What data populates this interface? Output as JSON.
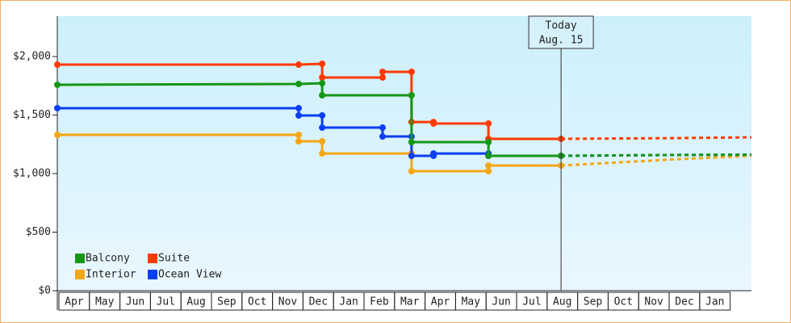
{
  "chart_data": {
    "type": "step-line",
    "xlim": [
      0,
      22.75
    ],
    "xticks": [
      {
        "value": 0.5,
        "label": "Apr"
      },
      {
        "value": 1.5,
        "label": "May"
      },
      {
        "value": 2.5,
        "label": "Jun"
      },
      {
        "value": 3.5,
        "label": "Jul"
      },
      {
        "value": 4.5,
        "label": "Aug"
      },
      {
        "value": 5.5,
        "label": "Sep"
      },
      {
        "value": 6.5,
        "label": "Oct"
      },
      {
        "value": 7.5,
        "label": "Nov"
      },
      {
        "value": 8.5,
        "label": "Dec"
      },
      {
        "value": 9.5,
        "label": "Jan"
      },
      {
        "value": 10.5,
        "label": "Feb"
      },
      {
        "value": 11.5,
        "label": "Mar"
      },
      {
        "value": 12.5,
        "label": "Apr"
      },
      {
        "value": 13.5,
        "label": "May"
      },
      {
        "value": 14.5,
        "label": "Jun"
      },
      {
        "value": 15.5,
        "label": "Jul"
      },
      {
        "value": 16.5,
        "label": "Aug"
      },
      {
        "value": 17.5,
        "label": "Sep"
      },
      {
        "value": 18.5,
        "label": "Oct"
      },
      {
        "value": 19.5,
        "label": "Nov"
      },
      {
        "value": 20.5,
        "label": "Dec"
      },
      {
        "value": 21.5,
        "label": "Jan"
      }
    ],
    "ylim": [
      0,
      2345
    ],
    "yticks": [
      {
        "value": 0,
        "label": "$0"
      },
      {
        "value": 500,
        "label": "$500"
      },
      {
        "value": 1000,
        "label": "$1,000"
      },
      {
        "value": 1500,
        "label": "$1,500"
      },
      {
        "value": 2000,
        "label": "$2,000"
      }
    ],
    "series": [
      {
        "name": "Interior",
        "color": "#f5a616",
        "x": [
          0,
          7.91,
          7.91,
          8.68,
          8.68,
          11.61,
          11.61,
          14.13,
          14.13,
          16.51
        ],
        "values": [
          1331,
          1331,
          1276,
          1276,
          1172,
          1172,
          1021,
          1021,
          1069,
          1069
        ],
        "forecast_x": [
          16.51,
          20.08,
          22.75
        ],
        "forecast_values": [
          1069,
          1120,
          1152
        ]
      },
      {
        "name": "Ocean View",
        "color": "#0a3ff0",
        "x": [
          0,
          7.91,
          7.91,
          8.68,
          8.68,
          10.66,
          10.66,
          11.61,
          11.61,
          12.33,
          12.33,
          14.13,
          14.13,
          16.51
        ],
        "values": [
          1559,
          1559,
          1497,
          1497,
          1393,
          1393,
          1317,
          1317,
          1152,
          1152,
          1172,
          1172,
          1152,
          1152
        ],
        "forecast_x": [
          16.51,
          20.08,
          22.75
        ],
        "forecast_values": [
          1152,
          1159,
          1162
        ]
      },
      {
        "name": "Suite",
        "color": "#ff3a00",
        "x": [
          0,
          7.91,
          8.68,
          8.68,
          10.66,
          10.66,
          11.61,
          11.61,
          12.33,
          12.33,
          14.13,
          14.13,
          16.51
        ],
        "values": [
          1931,
          1931,
          1938,
          1821,
          1821,
          1869,
          1869,
          1441,
          1441,
          1428,
          1428,
          1297,
          1297
        ],
        "forecast_x": [
          16.51,
          20.08,
          22.75
        ],
        "forecast_values": [
          1297,
          1303,
          1310
        ]
      },
      {
        "name": "Balcony",
        "color": "#169616",
        "x": [
          0,
          7.91,
          8.68,
          8.68,
          11.61,
          11.61,
          14.13,
          14.13,
          16.51
        ],
        "values": [
          1759,
          1766,
          1772,
          1669,
          1669,
          1269,
          1269,
          1152,
          1152
        ],
        "forecast_x": [
          16.51,
          20.08,
          22.75
        ],
        "forecast_values": [
          1152,
          1159,
          1162
        ]
      }
    ],
    "legend_order": [
      3,
      2,
      0,
      1
    ],
    "annotation": {
      "x": 16.51,
      "lines": [
        "Today",
        "Aug. 15"
      ]
    }
  }
}
